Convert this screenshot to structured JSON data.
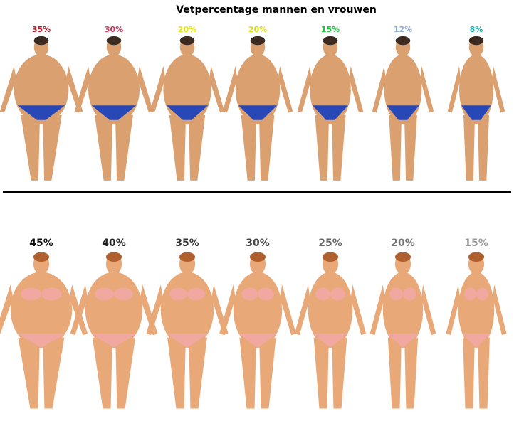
{
  "header": {
    "title": "Vetpercentage mannen en vrouwen"
  },
  "men": {
    "labels": [
      "35%",
      "30%",
      "20%",
      "20%",
      "15%",
      "12%",
      "8%"
    ],
    "colors": [
      "#c0142a",
      "#d0305a",
      "#e2e600",
      "#d8e000",
      "#12c832",
      "#8ab0e0",
      "#20b0b0"
    ]
  },
  "women": {
    "labels": [
      "45%",
      "40%",
      "35%",
      "30%",
      "25%",
      "20%",
      "15%"
    ],
    "colors": [
      "#111111",
      "#222222",
      "#333333",
      "#444444",
      "#666666",
      "#777777",
      "#999999"
    ]
  }
}
